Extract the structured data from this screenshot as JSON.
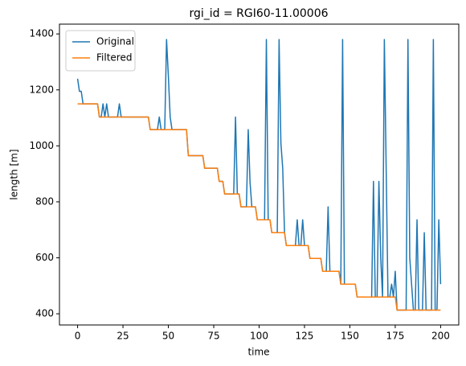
{
  "chart_data": {
    "type": "line",
    "title": "rgi_id = RGI60-11.00006",
    "x_label": "time",
    "y_label": "length [m]",
    "x": [
      0,
      1,
      2,
      3,
      4,
      5,
      6,
      7,
      8,
      9,
      10,
      11,
      12,
      13,
      14,
      15,
      16,
      17,
      18,
      19,
      20,
      21,
      22,
      23,
      24,
      25,
      26,
      27,
      28,
      29,
      30,
      31,
      32,
      33,
      34,
      35,
      36,
      37,
      38,
      39,
      40,
      41,
      42,
      43,
      44,
      45,
      46,
      47,
      48,
      49,
      50,
      51,
      52,
      53,
      54,
      55,
      56,
      57,
      58,
      59,
      60,
      61,
      62,
      63,
      64,
      65,
      66,
      67,
      68,
      69,
      70,
      71,
      72,
      73,
      74,
      75,
      76,
      77,
      78,
      79,
      80,
      81,
      82,
      83,
      84,
      85,
      86,
      87,
      88,
      89,
      90,
      91,
      92,
      93,
      94,
      95,
      96,
      97,
      98,
      99,
      100,
      101,
      102,
      103,
      104,
      105,
      106,
      107,
      108,
      109,
      110,
      111,
      112,
      113,
      114,
      115,
      116,
      117,
      118,
      119,
      120,
      121,
      122,
      123,
      124,
      125,
      126,
      127,
      128,
      129,
      130,
      131,
      132,
      133,
      134,
      135,
      136,
      137,
      138,
      139,
      140,
      141,
      142,
      143,
      144,
      145,
      146,
      147,
      148,
      149,
      150,
      151,
      152,
      153,
      154,
      155,
      156,
      157,
      158,
      159,
      160,
      161,
      162,
      163,
      164,
      165,
      166,
      167,
      168,
      169,
      170,
      171,
      172,
      173,
      174,
      175,
      176,
      177,
      178,
      179,
      180,
      181,
      182,
      183,
      184,
      185,
      186,
      187,
      188,
      189,
      190,
      191,
      192,
      193,
      194,
      195,
      196,
      197,
      198,
      199,
      200
    ],
    "series": [
      {
        "name": "Original",
        "color": "#1f77b4",
        "values": [
          1240,
          1195,
          1195,
          1150,
          1150,
          1150,
          1150,
          1150,
          1150,
          1150,
          1150,
          1150,
          1103,
          1103,
          1150,
          1103,
          1150,
          1103,
          1103,
          1103,
          1103,
          1103,
          1103,
          1150,
          1103,
          1103,
          1103,
          1103,
          1103,
          1103,
          1103,
          1103,
          1103,
          1103,
          1103,
          1103,
          1103,
          1103,
          1103,
          1103,
          1058,
          1058,
          1058,
          1058,
          1058,
          1103,
          1058,
          1058,
          1058,
          1380,
          1250,
          1103,
          1058,
          1058,
          1058,
          1058,
          1058,
          1058,
          1058,
          1058,
          1058,
          965,
          965,
          965,
          965,
          965,
          965,
          965,
          965,
          965,
          920,
          920,
          920,
          920,
          920,
          920,
          920,
          920,
          873,
          873,
          873,
          828,
          828,
          828,
          828,
          828,
          828,
          1103,
          828,
          828,
          782,
          782,
          782,
          782,
          1058,
          870,
          782,
          782,
          782,
          736,
          736,
          736,
          736,
          736,
          1380,
          736,
          736,
          690,
          690,
          690,
          690,
          1380,
          1010,
          920,
          690,
          644,
          644,
          644,
          644,
          644,
          644,
          736,
          644,
          644,
          736,
          644,
          644,
          644,
          598,
          598,
          598,
          598,
          598,
          598,
          598,
          552,
          552,
          552,
          782,
          552,
          552,
          552,
          552,
          552,
          552,
          506,
          1380,
          506,
          506,
          506,
          506,
          506,
          506,
          506,
          460,
          460,
          460,
          460,
          460,
          460,
          460,
          460,
          460,
          873,
          460,
          460,
          873,
          600,
          460,
          1380,
          920,
          460,
          460,
          506,
          460,
          552,
          413,
          413,
          413,
          413,
          413,
          413,
          1380,
          600,
          506,
          413,
          413,
          736,
          413,
          413,
          413,
          690,
          413,
          413,
          413,
          413,
          1380,
          413,
          413,
          736,
          506
        ]
      },
      {
        "name": "Filtered",
        "color": "#ff7f0e",
        "values": [
          1150,
          1150,
          1150,
          1150,
          1150,
          1150,
          1150,
          1150,
          1150,
          1150,
          1150,
          1150,
          1103,
          1103,
          1103,
          1103,
          1103,
          1103,
          1103,
          1103,
          1103,
          1103,
          1103,
          1103,
          1103,
          1103,
          1103,
          1103,
          1103,
          1103,
          1103,
          1103,
          1103,
          1103,
          1103,
          1103,
          1103,
          1103,
          1103,
          1103,
          1058,
          1058,
          1058,
          1058,
          1058,
          1058,
          1058,
          1058,
          1058,
          1058,
          1058,
          1058,
          1058,
          1058,
          1058,
          1058,
          1058,
          1058,
          1058,
          1058,
          1058,
          965,
          965,
          965,
          965,
          965,
          965,
          965,
          965,
          965,
          920,
          920,
          920,
          920,
          920,
          920,
          920,
          920,
          873,
          873,
          873,
          828,
          828,
          828,
          828,
          828,
          828,
          828,
          828,
          828,
          782,
          782,
          782,
          782,
          782,
          782,
          782,
          782,
          782,
          736,
          736,
          736,
          736,
          736,
          736,
          736,
          736,
          690,
          690,
          690,
          690,
          690,
          690,
          690,
          690,
          644,
          644,
          644,
          644,
          644,
          644,
          644,
          644,
          644,
          644,
          644,
          644,
          644,
          598,
          598,
          598,
          598,
          598,
          598,
          598,
          552,
          552,
          552,
          552,
          552,
          552,
          552,
          552,
          552,
          552,
          506,
          506,
          506,
          506,
          506,
          506,
          506,
          506,
          506,
          460,
          460,
          460,
          460,
          460,
          460,
          460,
          460,
          460,
          460,
          460,
          460,
          460,
          460,
          460,
          460,
          460,
          460,
          460,
          460,
          460,
          460,
          413,
          413,
          413,
          413,
          413,
          413,
          413,
          413,
          413,
          413,
          413,
          413,
          413,
          413,
          413,
          413,
          413,
          413,
          413,
          413,
          413,
          413,
          413,
          413,
          413
        ]
      }
    ],
    "xlim": [
      -10,
      210
    ],
    "ylim": [
      360,
      1435
    ],
    "xticks": [
      0,
      25,
      50,
      75,
      100,
      125,
      150,
      175,
      200
    ],
    "yticks": [
      400,
      600,
      800,
      1000,
      1200,
      1400
    ],
    "legend": "upper left"
  }
}
